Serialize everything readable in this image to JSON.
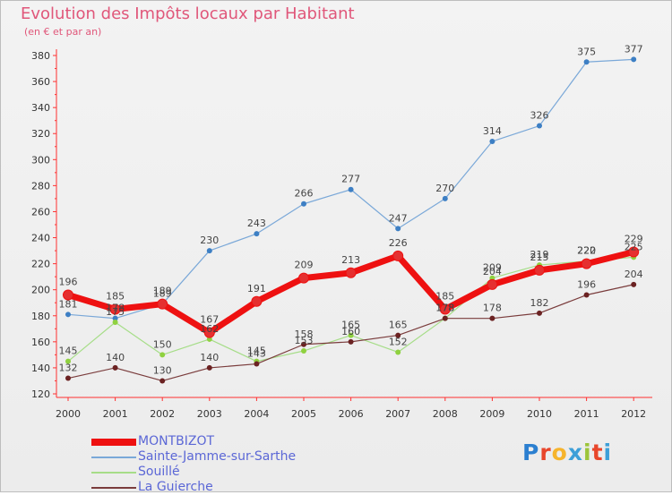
{
  "title": "Evolution des Impôts locaux par Habitant",
  "subtitle": "(en € et par an)",
  "brand": {
    "letters": [
      {
        "ch": "P",
        "color": "#2b7fd0"
      },
      {
        "ch": "r",
        "color": "#e8462b"
      },
      {
        "ch": "o",
        "color": "#f6b42c"
      },
      {
        "ch": "x",
        "color": "#3d9fd8"
      },
      {
        "ch": "i",
        "color": "#9cc43a"
      },
      {
        "ch": "t",
        "color": "#e8462b"
      },
      {
        "ch": "i",
        "color": "#3d9fd8"
      }
    ]
  },
  "chart_data": {
    "type": "line",
    "title": "Evolution des Impôts locaux par Habitant",
    "subtitle": "(en € et par an)",
    "xlabel": "",
    "ylabel": "",
    "x": [
      "2000",
      "2001",
      "2002",
      "2003",
      "2004",
      "2005",
      "2006",
      "2007",
      "2008",
      "2009",
      "2010",
      "2011",
      "2012"
    ],
    "ylim": [
      120,
      380
    ],
    "yticks": [
      120,
      140,
      160,
      180,
      200,
      220,
      240,
      260,
      280,
      300,
      320,
      340,
      360,
      380
    ],
    "grid": false,
    "legend": "bottom-left",
    "series": [
      {
        "name": "MONTBIZOT",
        "color": "#ee1111",
        "marker": "#e53030",
        "values": [
          196,
          185,
          189,
          167,
          191,
          209,
          213,
          226,
          185,
          204,
          215,
          220,
          229
        ]
      },
      {
        "name": "Sainte-Jamme-sur-Sarthe",
        "color": "#7aa8d8",
        "marker": "#3d7fc4",
        "values": [
          181,
          178,
          189,
          230,
          243,
          266,
          277,
          247,
          270,
          314,
          326,
          375,
          377
        ]
      },
      {
        "name": "Souillé",
        "color": "#a6dd88",
        "marker": "#8fd13f",
        "values": [
          145,
          175,
          150,
          162,
          145,
          153,
          165,
          152,
          178,
          209,
          219,
          222,
          225
        ]
      },
      {
        "name": "La Guierche",
        "color": "#7a3c3c",
        "marker": "#6b2222",
        "values": [
          132,
          140,
          130,
          140,
          143,
          158,
          160,
          165,
          178,
          178,
          182,
          196,
          204
        ]
      }
    ],
    "data_labels": [
      [
        "196",
        "185",
        "189",
        "167",
        "191",
        "209",
        "213",
        "226",
        "185",
        "204",
        "215",
        "220",
        "229"
      ],
      [
        "181",
        "178",
        "189",
        "230",
        "243",
        "266",
        "277",
        "247",
        "270",
        "314",
        "326",
        "375",
        "377"
      ],
      [
        "145",
        "175",
        "150",
        "162",
        "145",
        "153",
        "165",
        "152",
        "178",
        "209",
        "219",
        "222",
        "225"
      ],
      [
        "132",
        "140",
        "130",
        "140",
        "143",
        "158",
        "160",
        "165",
        "178",
        "178",
        "182",
        "196",
        "204"
      ]
    ]
  }
}
